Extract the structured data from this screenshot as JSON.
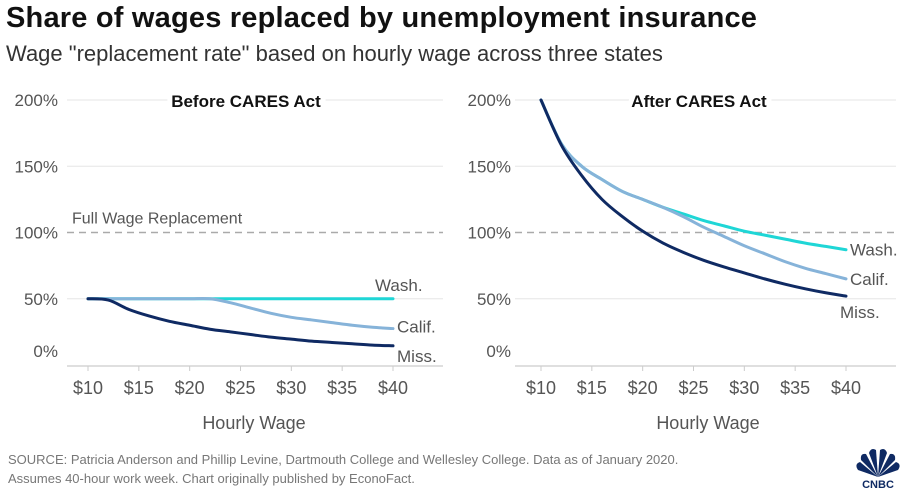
{
  "header": {
    "title": "Share of wages replaced by unemployment insurance",
    "subtitle": "Wage \"replacement rate\" based on hourly wage across three states"
  },
  "footer": {
    "source_line1": "SOURCE: Patricia Anderson and Phillip Levine, Dartmouth College and Wellesley College. Data as of January 2020.",
    "source_line2": "Assumes 40-hour work week. Chart originally published by EconoFact.",
    "logo_text": "CNBC"
  },
  "colors": {
    "wash": "#1fd6d6",
    "calif": "#86b3d9",
    "miss": "#0f2a63",
    "reference": "#aaaaaa",
    "grid": "#e6e6e6",
    "logo": "#0f2a63"
  },
  "chart_data": [
    {
      "type": "line",
      "title": "Before CARES Act",
      "xlabel": "Hourly Wage",
      "ylabel": "",
      "x_ticks": [
        "$10",
        "$15",
        "$20",
        "$25",
        "$30",
        "$35",
        "$40"
      ],
      "y_ticks": [
        "200%",
        "150%",
        "100%",
        "50%",
        "0%"
      ],
      "xlim": [
        10,
        40
      ],
      "ylim": [
        0,
        200
      ],
      "grid": true,
      "reference_line": {
        "y": 100,
        "label": "Full Wage Replacement",
        "style": "dashed"
      },
      "x": [
        10,
        12,
        14,
        16,
        18,
        20,
        22,
        24,
        26,
        28,
        30,
        32,
        34,
        36,
        38,
        40
      ],
      "series": [
        {
          "name": "Wash.",
          "key": "wash",
          "values": [
            50,
            50,
            50,
            50,
            50,
            50,
            50,
            50,
            50,
            50,
            50,
            50,
            50,
            50,
            50,
            50
          ]
        },
        {
          "name": "Calif.",
          "key": "calif",
          "values": [
            50,
            50,
            50,
            50,
            50,
            50,
            50,
            47,
            43,
            39,
            36,
            34,
            32,
            30,
            28.5,
            27.5
          ]
        },
        {
          "name": "Miss.",
          "key": "miss",
          "values": [
            50,
            49,
            42,
            37,
            33,
            30,
            27,
            25,
            23,
            21,
            19.5,
            18,
            17,
            16,
            15,
            14.5
          ]
        }
      ]
    },
    {
      "type": "line",
      "title": "After CARES Act",
      "xlabel": "Hourly Wage",
      "ylabel": "",
      "x_ticks": [
        "$10",
        "$15",
        "$20",
        "$25",
        "$30",
        "$35",
        "$40"
      ],
      "y_ticks": [
        "200%",
        "150%",
        "100%",
        "50%",
        "0%"
      ],
      "xlim": [
        10,
        40
      ],
      "ylim": [
        0,
        200
      ],
      "grid": true,
      "reference_line": {
        "y": 100,
        "style": "dashed"
      },
      "x": [
        10,
        12,
        14,
        16,
        18,
        20,
        22,
        24,
        26,
        28,
        30,
        32,
        34,
        36,
        38,
        40
      ],
      "series": [
        {
          "name": "Wash.",
          "key": "wash",
          "values": [
            200,
            167,
            150,
            140,
            131,
            125,
            119,
            114,
            109,
            105,
            101,
            98,
            95,
            92,
            89.5,
            87
          ]
        },
        {
          "name": "Calif.",
          "key": "calif",
          "values": [
            200,
            167,
            150,
            140,
            131,
            125,
            119,
            112,
            104,
            97,
            90,
            84,
            78,
            73,
            69,
            65
          ]
        },
        {
          "name": "Miss.",
          "key": "miss",
          "values": [
            200,
            166,
            143,
            125,
            112,
            101,
            92,
            85,
            79,
            74,
            69.5,
            65,
            61,
            57.5,
            54.5,
            52
          ]
        }
      ]
    }
  ]
}
